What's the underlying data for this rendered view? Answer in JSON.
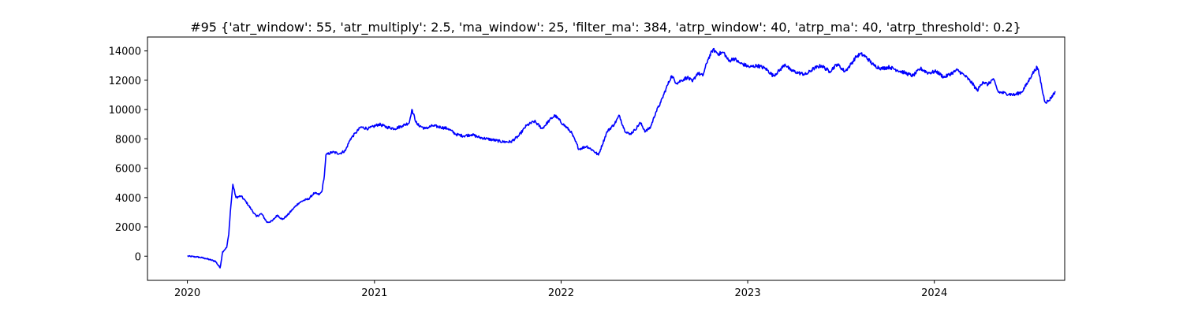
{
  "chart_data": {
    "type": "line",
    "title": "#95 {'atr_window': 55, 'atr_multiply': 2.5, 'ma_window': 25, 'filter_ma': 384, 'atrp_window': 40, 'atrp_ma': 40, 'atrp_threshold': 0.2}",
    "xlabel": "",
    "ylabel": "",
    "x_axis": {
      "type": "date",
      "range": [
        "2019-10-15",
        "2024-09-12"
      ],
      "ticks": [
        "2020-01-01",
        "2021-01-01",
        "2022-01-01",
        "2023-01-01",
        "2024-01-01"
      ],
      "tick_labels": [
        "2020",
        "2021",
        "2022",
        "2023",
        "2024"
      ]
    },
    "y_axis": {
      "range": [
        -1650,
        14950
      ],
      "ticks": [
        0,
        2000,
        4000,
        6000,
        8000,
        10000,
        12000,
        14000
      ],
      "tick_labels": [
        "0",
        "2000",
        "4000",
        "6000",
        "8000",
        "10000",
        "12000",
        "14000"
      ]
    },
    "grid": false,
    "series": [
      {
        "color": "#0000ff",
        "points": [
          [
            "2020-01-01",
            0
          ],
          [
            "2020-01-20",
            -50
          ],
          [
            "2020-02-05",
            -150
          ],
          [
            "2020-02-15",
            -250
          ],
          [
            "2020-02-25",
            -350
          ],
          [
            "2020-03-05",
            -800
          ],
          [
            "2020-03-10",
            300
          ],
          [
            "2020-03-18",
            600
          ],
          [
            "2020-03-22",
            1500
          ],
          [
            "2020-03-25",
            3000
          ],
          [
            "2020-03-30",
            4900
          ],
          [
            "2020-04-05",
            4000
          ],
          [
            "2020-04-15",
            4100
          ],
          [
            "2020-04-25",
            3700
          ],
          [
            "2020-05-05",
            3200
          ],
          [
            "2020-05-15",
            2700
          ],
          [
            "2020-05-25",
            2900
          ],
          [
            "2020-06-05",
            2300
          ],
          [
            "2020-06-15",
            2400
          ],
          [
            "2020-06-25",
            2800
          ],
          [
            "2020-07-05",
            2500
          ],
          [
            "2020-07-15",
            2800
          ],
          [
            "2020-07-25",
            3200
          ],
          [
            "2020-08-05",
            3600
          ],
          [
            "2020-08-15",
            3800
          ],
          [
            "2020-08-25",
            3900
          ],
          [
            "2020-09-05",
            4300
          ],
          [
            "2020-09-15",
            4200
          ],
          [
            "2020-09-20",
            4400
          ],
          [
            "2020-09-25",
            5500
          ],
          [
            "2020-09-28",
            6900
          ],
          [
            "2020-10-10",
            7100
          ],
          [
            "2020-10-25",
            7000
          ],
          [
            "2020-11-05",
            7200
          ],
          [
            "2020-11-15",
            8000
          ],
          [
            "2020-11-25",
            8400
          ],
          [
            "2020-12-05",
            8800
          ],
          [
            "2020-12-20",
            8700
          ],
          [
            "2021-01-10",
            9000
          ],
          [
            "2021-01-25",
            8800
          ],
          [
            "2021-02-10",
            8700
          ],
          [
            "2021-02-25",
            8900
          ],
          [
            "2021-03-10",
            9100
          ],
          [
            "2021-03-15",
            10000
          ],
          [
            "2021-03-25",
            9000
          ],
          [
            "2021-04-10",
            8700
          ],
          [
            "2021-04-25",
            8900
          ],
          [
            "2021-05-10",
            8800
          ],
          [
            "2021-05-25",
            8700
          ],
          [
            "2021-06-10",
            8300
          ],
          [
            "2021-06-25",
            8200
          ],
          [
            "2021-07-10",
            8300
          ],
          [
            "2021-07-25",
            8100
          ],
          [
            "2021-08-10",
            8000
          ],
          [
            "2021-08-25",
            7900
          ],
          [
            "2021-09-10",
            7800
          ],
          [
            "2021-09-25",
            7800
          ],
          [
            "2021-10-10",
            8200
          ],
          [
            "2021-10-25",
            8900
          ],
          [
            "2021-11-10",
            9200
          ],
          [
            "2021-11-25",
            8700
          ],
          [
            "2021-12-10",
            9300
          ],
          [
            "2021-12-20",
            9600
          ],
          [
            "2022-01-05",
            9000
          ],
          [
            "2022-01-20",
            8500
          ],
          [
            "2022-02-05",
            7300
          ],
          [
            "2022-02-20",
            7500
          ],
          [
            "2022-03-05",
            7200
          ],
          [
            "2022-03-15",
            6900
          ],
          [
            "2022-04-01",
            8500
          ],
          [
            "2022-04-15",
            9000
          ],
          [
            "2022-04-25",
            9600
          ],
          [
            "2022-05-05",
            8600
          ],
          [
            "2022-05-15",
            8300
          ],
          [
            "2022-05-25",
            8600
          ],
          [
            "2022-06-05",
            9100
          ],
          [
            "2022-06-15",
            8500
          ],
          [
            "2022-06-25",
            8800
          ],
          [
            "2022-07-05",
            9800
          ],
          [
            "2022-07-15",
            10500
          ],
          [
            "2022-07-25",
            11400
          ],
          [
            "2022-08-05",
            12300
          ],
          [
            "2022-08-15",
            11800
          ],
          [
            "2022-08-25",
            12000
          ],
          [
            "2022-09-05",
            12200
          ],
          [
            "2022-09-15",
            11900
          ],
          [
            "2022-09-25",
            12500
          ],
          [
            "2022-10-05",
            12300
          ],
          [
            "2022-10-15",
            13400
          ],
          [
            "2022-10-25",
            14100
          ],
          [
            "2022-11-05",
            13800
          ],
          [
            "2022-11-15",
            13900
          ],
          [
            "2022-11-25",
            13300
          ],
          [
            "2022-12-05",
            13500
          ],
          [
            "2022-12-15",
            13200
          ],
          [
            "2023-01-05",
            12900
          ],
          [
            "2023-01-20",
            13000
          ],
          [
            "2023-02-05",
            12800
          ],
          [
            "2023-02-20",
            12300
          ],
          [
            "2023-03-05",
            12700
          ],
          [
            "2023-03-15",
            13100
          ],
          [
            "2023-03-25",
            12700
          ],
          [
            "2023-04-10",
            12500
          ],
          [
            "2023-04-25",
            12400
          ],
          [
            "2023-05-10",
            12800
          ],
          [
            "2023-05-25",
            13000
          ],
          [
            "2023-06-10",
            12600
          ],
          [
            "2023-06-25",
            13100
          ],
          [
            "2023-07-10",
            12600
          ],
          [
            "2023-07-20",
            13000
          ],
          [
            "2023-08-01",
            13600
          ],
          [
            "2023-08-10",
            13800
          ],
          [
            "2023-08-20",
            13600
          ],
          [
            "2023-09-05",
            13000
          ],
          [
            "2023-09-20",
            12800
          ],
          [
            "2023-10-05",
            12900
          ],
          [
            "2023-10-20",
            12700
          ],
          [
            "2023-11-05",
            12500
          ],
          [
            "2023-11-20",
            12300
          ],
          [
            "2023-12-05",
            12800
          ],
          [
            "2023-12-20",
            12500
          ],
          [
            "2024-01-05",
            12600
          ],
          [
            "2024-01-20",
            12200
          ],
          [
            "2024-02-05",
            12500
          ],
          [
            "2024-02-15",
            12700
          ],
          [
            "2024-03-01",
            12300
          ],
          [
            "2024-03-15",
            11800
          ],
          [
            "2024-03-25",
            11300
          ],
          [
            "2024-04-05",
            11900
          ],
          [
            "2024-04-15",
            11700
          ],
          [
            "2024-04-25",
            12100
          ],
          [
            "2024-05-05",
            11200
          ],
          [
            "2024-05-20",
            11100
          ],
          [
            "2024-06-05",
            11000
          ],
          [
            "2024-06-20",
            11200
          ],
          [
            "2024-07-01",
            11800
          ],
          [
            "2024-07-10",
            12400
          ],
          [
            "2024-07-20",
            12900
          ],
          [
            "2024-07-25",
            12300
          ],
          [
            "2024-08-01",
            11000
          ],
          [
            "2024-08-05",
            10500
          ],
          [
            "2024-08-12",
            10600
          ],
          [
            "2024-08-20",
            11000
          ],
          [
            "2024-08-25",
            11200
          ]
        ]
      }
    ]
  }
}
